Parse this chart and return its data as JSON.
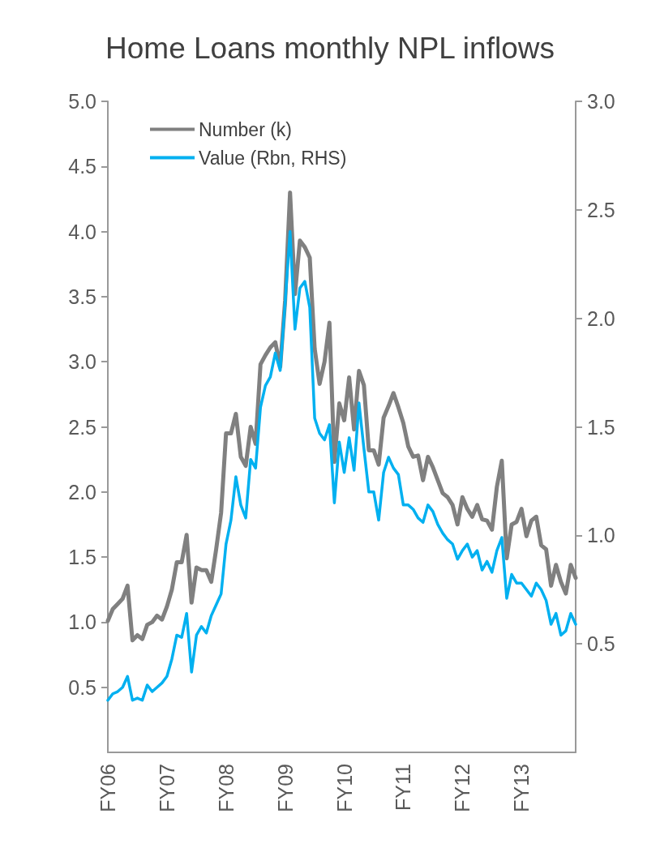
{
  "chart_data": {
    "type": "line",
    "title": "Home Loans monthly NPL inflows",
    "categories": [
      "FY06",
      null,
      null,
      null,
      null,
      null,
      null,
      null,
      null,
      null,
      null,
      null,
      "FY07",
      null,
      null,
      null,
      null,
      null,
      null,
      null,
      null,
      null,
      null,
      null,
      "FY08",
      null,
      null,
      null,
      null,
      null,
      null,
      null,
      null,
      null,
      null,
      null,
      "FY09",
      null,
      null,
      null,
      null,
      null,
      null,
      null,
      null,
      null,
      null,
      null,
      "FY10",
      null,
      null,
      null,
      null,
      null,
      null,
      null,
      null,
      null,
      null,
      null,
      "FY11",
      null,
      null,
      null,
      null,
      null,
      null,
      null,
      null,
      null,
      null,
      null,
      "FY12",
      null,
      null,
      null,
      null,
      null,
      null,
      null,
      null,
      null,
      null,
      null,
      "FY13",
      null,
      null,
      null,
      null,
      null,
      null,
      null,
      null,
      null,
      null,
      null
    ],
    "series": [
      {
        "name": "Number (k)",
        "color": "#808080",
        "values": [
          1.01,
          1.1,
          1.14,
          1.18,
          1.28,
          0.86,
          0.9,
          0.87,
          0.98,
          1.0,
          1.05,
          1.02,
          1.12,
          1.25,
          1.46,
          1.46,
          1.67,
          1.15,
          1.42,
          1.4,
          1.4,
          1.31,
          1.56,
          1.84,
          2.45,
          2.45,
          2.6,
          2.27,
          2.2,
          2.5,
          2.37,
          2.98,
          3.05,
          3.11,
          3.15,
          2.96,
          3.47,
          4.3,
          3.52,
          3.93,
          3.88,
          3.8,
          3.1,
          2.83,
          3.0,
          3.3,
          2.23,
          2.68,
          2.55,
          2.88,
          2.48,
          2.93,
          2.82,
          2.32,
          2.32,
          2.21,
          2.57,
          2.66,
          2.76,
          2.65,
          2.53,
          2.35,
          2.27,
          2.28,
          2.09,
          2.27,
          2.19,
          2.09,
          1.99,
          1.96,
          1.9,
          1.75,
          1.96,
          1.87,
          1.81,
          1.9,
          1.79,
          1.78,
          1.71,
          2.04,
          2.24,
          1.49,
          1.75,
          1.77,
          1.87,
          1.66,
          1.78,
          1.81,
          1.59,
          1.56,
          1.28,
          1.44,
          1.31,
          1.22,
          1.44,
          1.34
        ]
      },
      {
        "name": "Value (Rbn, RHS)",
        "color": "#00b0f0",
        "axis": "y2",
        "values": [
          0.24,
          0.27,
          0.28,
          0.3,
          0.35,
          0.24,
          0.25,
          0.24,
          0.31,
          0.28,
          0.3,
          0.32,
          0.35,
          0.43,
          0.54,
          0.53,
          0.64,
          0.37,
          0.54,
          0.58,
          0.55,
          0.63,
          0.68,
          0.73,
          0.96,
          1.07,
          1.27,
          1.14,
          1.08,
          1.35,
          1.31,
          1.59,
          1.69,
          1.73,
          1.84,
          1.76,
          2.07,
          2.4,
          1.95,
          2.14,
          2.17,
          2.05,
          1.54,
          1.47,
          1.44,
          1.51,
          1.15,
          1.43,
          1.29,
          1.45,
          1.3,
          1.61,
          1.4,
          1.2,
          1.2,
          1.07,
          1.29,
          1.36,
          1.31,
          1.28,
          1.14,
          1.14,
          1.12,
          1.08,
          1.06,
          1.14,
          1.11,
          1.05,
          1.01,
          0.98,
          0.96,
          0.89,
          0.93,
          0.96,
          0.9,
          0.93,
          0.84,
          0.88,
          0.83,
          0.93,
          0.99,
          0.71,
          0.82,
          0.78,
          0.78,
          0.75,
          0.72,
          0.78,
          0.75,
          0.7,
          0.59,
          0.64,
          0.54,
          0.56,
          0.64,
          0.59
        ]
      }
    ],
    "ylim": [
      0,
      5
    ],
    "yticks": [
      0.5,
      {
        "value": 1,
        "label": "1.0"
      },
      1.5,
      {
        "value": 2,
        "label": "2.0"
      },
      2.5,
      {
        "value": 3,
        "label": "3.0"
      },
      3.5,
      {
        "value": 4,
        "label": "4.0"
      },
      4.5,
      {
        "value": 5,
        "label": "5.0"
      }
    ],
    "y2lim": [
      0,
      3
    ],
    "y2ticks": [
      0.5,
      {
        "value": 1,
        "label": "1.0"
      },
      1.5,
      {
        "value": 2,
        "label": "2.0"
      },
      2.5,
      {
        "value": 3,
        "label": "3.0"
      }
    ],
    "legend": "top left",
    "grid": false,
    "marker": "none",
    "line_style": "solid"
  }
}
